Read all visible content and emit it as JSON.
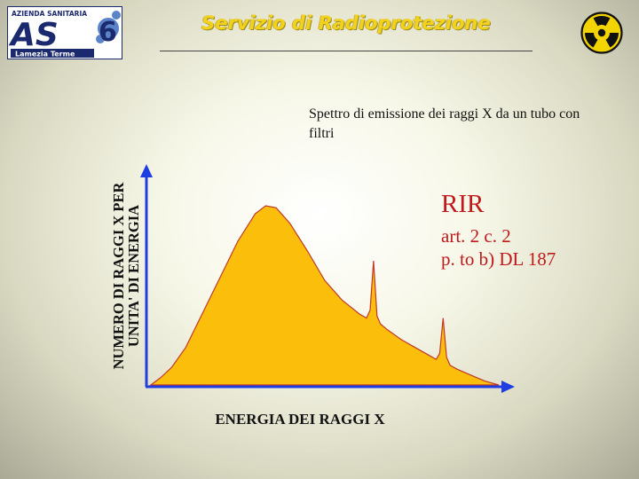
{
  "header": {
    "title": "Servizio di Radioprotezione",
    "logo": {
      "top_text": "AZIENDA SANITARIA",
      "letters": "AS",
      "number": "6",
      "bottom_text": "Lamezia Terme"
    },
    "radiation_icon": "radiation-trefoil-icon"
  },
  "caption": "Spettro di emissione dei raggi X da un tubo con filtri",
  "legal_reference": {
    "title": "RIR",
    "line1": "art. 2 c. 2",
    "line2": "p. to b) DL 187"
  },
  "colors": {
    "header_title": "#f2d21a",
    "curve_fill": "#fbbf0b",
    "curve_outline": "#c0392b",
    "axis": "#1f3de0",
    "legal_text": "#c0181b",
    "logo_blue": "#1b2a6e"
  },
  "chart_data": {
    "type": "area",
    "title": "",
    "xlabel": "ENERGIA DEI RAGGI X",
    "ylabel_line1": "NUMERO DI RAGGI X  PER",
    "ylabel_line2": "UNITA' DI ENERGIA",
    "axis_ticks": false,
    "grid": false,
    "xlim": [
      0,
      100
    ],
    "ylim": [
      0,
      100
    ],
    "series": [
      {
        "x": [
          0,
          3,
          6,
          10,
          15,
          20,
          25,
          30,
          33,
          36,
          40,
          45,
          50,
          55,
          60,
          62,
          63,
          64,
          65,
          66,
          68,
          72,
          76,
          80,
          82,
          83,
          84,
          85,
          86,
          88,
          92,
          96,
          100
        ],
        "y": [
          0,
          4,
          9,
          19,
          37,
          55,
          73,
          87,
          91,
          90,
          82,
          68,
          53,
          43,
          36,
          34,
          38,
          63,
          35,
          31,
          28,
          23,
          19,
          15,
          13,
          16,
          34,
          14,
          10,
          8,
          5,
          2,
          0
        ]
      }
    ],
    "peaks": [
      {
        "x": 64,
        "y": 63
      },
      {
        "x": 84,
        "y": 34
      }
    ]
  }
}
